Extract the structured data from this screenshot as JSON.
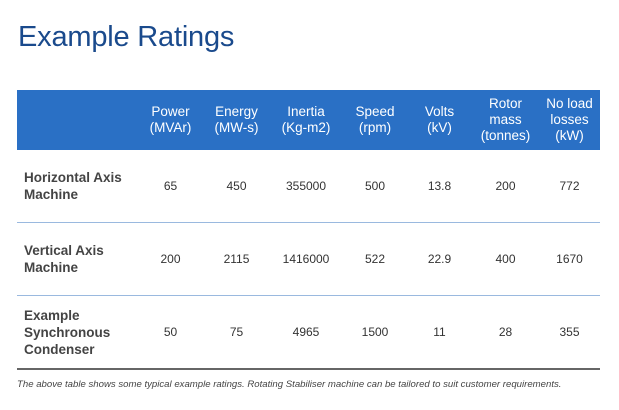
{
  "page": {
    "title": "Example Ratings",
    "caption": "The above table shows some typical example ratings. Rotating Stabiliser machine can be tailored to suit customer requirements."
  },
  "table": {
    "headers": [
      {
        "line1": "",
        "line2": "",
        "line3": ""
      },
      {
        "line1": "Power",
        "line2": "(MVAr)",
        "line3": ""
      },
      {
        "line1": "Energy",
        "line2": "(MW-s)",
        "line3": ""
      },
      {
        "line1": "Inertia",
        "line2": "(Kg-m2)",
        "line3": ""
      },
      {
        "line1": "Speed",
        "line2": "(rpm)",
        "line3": ""
      },
      {
        "line1": "Volts",
        "line2": "(kV)",
        "line3": ""
      },
      {
        "line1": "Rotor",
        "line2": "mass",
        "line3": "(tonnes)"
      },
      {
        "line1": "No load",
        "line2": "losses",
        "line3": "(kW)"
      }
    ],
    "rows": [
      {
        "label_lines": [
          "Horizontal Axis",
          "Machine",
          ""
        ],
        "cells": [
          "65",
          "450",
          "355000",
          "500",
          "13.8",
          "200",
          "772"
        ]
      },
      {
        "label_lines": [
          "Vertical Axis",
          "Machine",
          ""
        ],
        "cells": [
          "200",
          "2115",
          "1416000",
          "522",
          "22.9",
          "400",
          "1670"
        ]
      },
      {
        "label_lines": [
          "Example",
          "Synchronous",
          "Condenser"
        ],
        "cells": [
          "50",
          "75",
          "4965",
          "1500",
          "11",
          "28",
          "355"
        ]
      }
    ]
  },
  "colors": {
    "title": "#1a4a8c",
    "header_background": "#2a70c5",
    "header_text": "#ffffff",
    "row_divider": "#9ab9df",
    "bottom_rule": "#666666"
  }
}
